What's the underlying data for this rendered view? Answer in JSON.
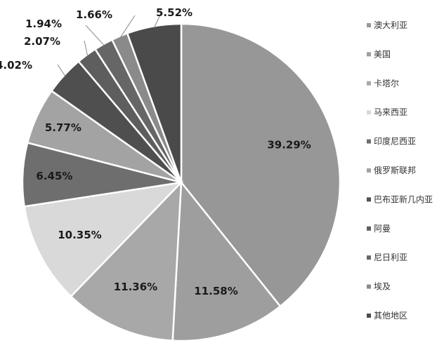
{
  "chart_data": {
    "type": "pie",
    "categories": [
      "澳大利亚",
      "美国",
      "卡塔尔",
      "马来西亚",
      "印度尼西亚",
      "俄罗斯联邦",
      "巴布亚新几内亚",
      "阿曼",
      "尼日利亚",
      "埃及",
      "其他地区"
    ],
    "values": [
      39.29,
      11.58,
      11.36,
      10.35,
      6.45,
      5.77,
      4.02,
      2.07,
      1.94,
      1.66,
      5.52
    ],
    "labels": [
      "39.29%",
      "11.58%",
      "11.36%",
      "10.35%",
      "6.45%",
      "5.77%",
      "4.02%",
      "2.07%",
      "1.94%",
      "1.66%",
      "5.52%"
    ],
    "colors": [
      "#979797",
      "#9e9e9e",
      "#a8a8a8",
      "#d9d9d9",
      "#6e6e6e",
      "#a3a3a3",
      "#4f4f4f",
      "#5e5e5e",
      "#666666",
      "#8a8a8a",
      "#4a4a4a"
    ],
    "legend_position": "right"
  }
}
